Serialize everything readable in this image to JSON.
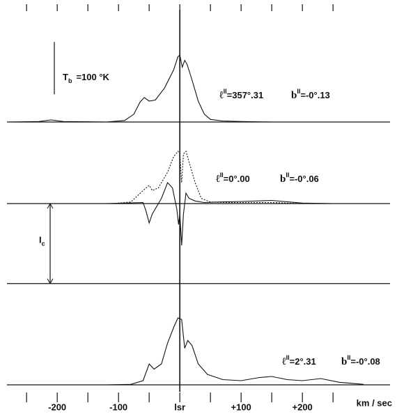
{
  "chart_data": [
    {
      "type": "line",
      "xlim": [
        -282,
        343
      ],
      "ylim": [
        0,
        200
      ],
      "scale_bar": {
        "values": [
          53,
          153
        ],
        "symbol": "T",
        "subscript": "b",
        "text": "=100 °K"
      },
      "annotations": [
        {
          "symbol": "ℓ",
          "sup": "II",
          "text": "=357°.31"
        },
        {
          "symbol": "b",
          "sup": "II",
          "text": "=-0°.13"
        }
      ],
      "series": [
        {
          "color": "#111111",
          "dashed": false,
          "x": [
            -280,
            -230,
            -210,
            -190,
            -120,
            -90,
            -75,
            -65,
            -58,
            -50,
            -40,
            -25,
            -10,
            -3,
            0,
            4,
            8,
            12,
            20,
            30,
            40,
            50,
            70,
            100,
            150,
            200,
            250,
            340
          ],
          "values": [
            0,
            1,
            4,
            1,
            0,
            3,
            15,
            38,
            47,
            40,
            42,
            65,
            100,
            125,
            128,
            105,
            118,
            110,
            80,
            40,
            15,
            5,
            2,
            1,
            0,
            0,
            0,
            0
          ]
        }
      ]
    },
    {
      "type": "line",
      "xlim": [
        -282,
        343
      ],
      "ylim": [
        -170,
        140
      ],
      "continuum": {
        "value": -153,
        "symbol": "I",
        "subscript": "c"
      },
      "annotations": [
        {
          "symbol": "ℓ",
          "sup": "II",
          "text": "=0°.00"
        },
        {
          "symbol": "b",
          "sup": "II",
          "text": "=-0°.06"
        }
      ],
      "series": [
        {
          "color": "#111111",
          "dashed": true,
          "x": [
            -110,
            -80,
            -60,
            -50,
            -45,
            -35,
            -20,
            -10,
            -3,
            0,
            3,
            6,
            10,
            15,
            25,
            35,
            50,
            80,
            150,
            200
          ],
          "values": [
            0,
            3,
            25,
            35,
            25,
            30,
            60,
            90,
            100,
            95,
            40,
            95,
            100,
            80,
            40,
            10,
            3,
            2,
            2,
            0
          ]
        },
        {
          "color": "#111111",
          "dashed": false,
          "x": [
            -120,
            -60,
            -55,
            -50,
            -45,
            -30,
            -20,
            -12,
            -5,
            -2,
            0,
            3,
            6,
            10,
            15,
            25,
            40,
            60,
            100,
            150,
            200,
            250
          ],
          "values": [
            0,
            2,
            -15,
            -37,
            -20,
            10,
            40,
            30,
            -10,
            -40,
            -20,
            -80,
            -20,
            20,
            10,
            5,
            2,
            3,
            4,
            6,
            1,
            0
          ]
        }
      ]
    },
    {
      "type": "line",
      "xlim": [
        -282,
        343
      ],
      "ylim": [
        0,
        200
      ],
      "annotations": [
        {
          "symbol": "ℓ",
          "sup": "II",
          "text": "=2°.31"
        },
        {
          "symbol": "b",
          "sup": "II",
          "text": "=-0°.08"
        }
      ],
      "xticks": [
        {
          "value": -200,
          "label": "-200"
        },
        {
          "value": -100,
          "label": "-100"
        },
        {
          "value": 0,
          "label": "lsr"
        },
        {
          "value": 100,
          "label": "+100"
        },
        {
          "value": 200,
          "label": "+200"
        }
      ],
      "minor_xticks": [
        -250,
        -150,
        -50,
        50,
        150,
        250
      ],
      "xlabel": "km / sec",
      "series": [
        {
          "color": "#111111",
          "dashed": false,
          "x": [
            -120,
            -80,
            -60,
            -50,
            -42,
            -30,
            -20,
            -10,
            -3,
            3,
            8,
            13,
            20,
            30,
            45,
            70,
            100,
            130,
            150,
            175,
            200,
            230,
            260,
            300
          ],
          "values": [
            0,
            1,
            8,
            40,
            30,
            40,
            80,
            110,
            128,
            125,
            70,
            85,
            75,
            40,
            20,
            10,
            8,
            14,
            16,
            10,
            8,
            12,
            5,
            1
          ]
        }
      ]
    }
  ]
}
